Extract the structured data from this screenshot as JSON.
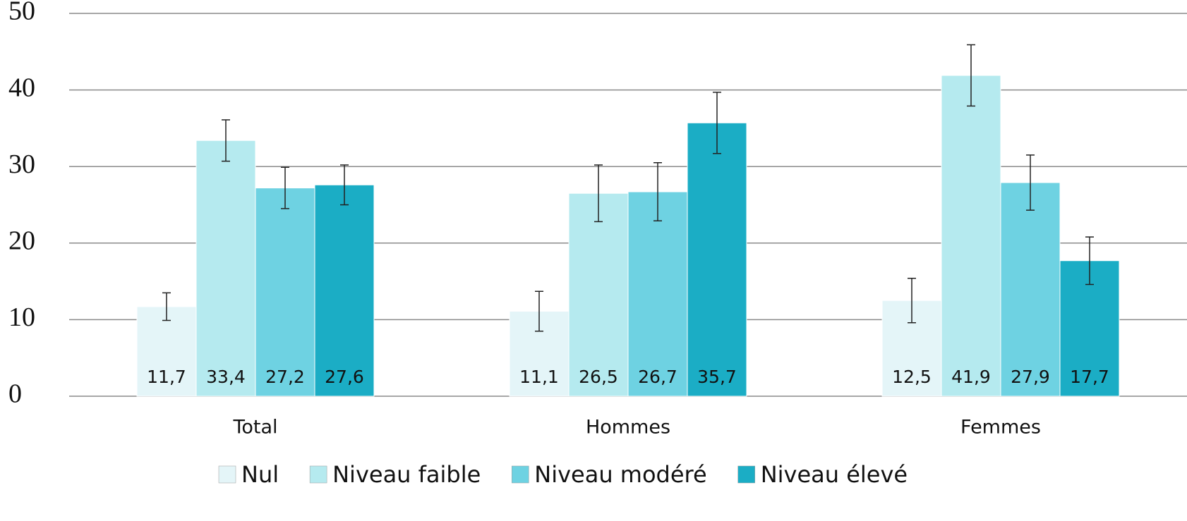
{
  "chart_data": {
    "type": "bar",
    "categories": [
      "Total",
      "Hommes",
      "Femmes"
    ],
    "series": [
      {
        "name": "Nul",
        "color": "#e4f5f8",
        "values": [
          11.7,
          11.1,
          12.5
        ],
        "value_labels": [
          "11,7",
          "11,1",
          "12,5"
        ],
        "errors": [
          1.8,
          2.6,
          2.9
        ]
      },
      {
        "name": "Niveau faible",
        "color": "#b5eaef",
        "values": [
          33.4,
          26.5,
          41.9
        ],
        "value_labels": [
          "33,4",
          "26,5",
          "41,9"
        ],
        "errors": [
          2.7,
          3.7,
          4.0
        ]
      },
      {
        "name": "Niveau modéré",
        "color": "#6ed2e2",
        "values": [
          27.2,
          26.7,
          27.9
        ],
        "value_labels": [
          "27,2",
          "26,7",
          "27,9"
        ],
        "errors": [
          2.7,
          3.8,
          3.6
        ]
      },
      {
        "name": "Niveau élevé",
        "color": "#1badc5",
        "values": [
          27.6,
          35.7,
          17.7
        ],
        "value_labels": [
          "27,6",
          "35,7",
          "17,7"
        ],
        "errors": [
          2.6,
          4.0,
          3.1
        ]
      }
    ],
    "ylim": [
      0,
      50
    ],
    "yticks": [
      0,
      10,
      20,
      30,
      40,
      50
    ],
    "grid": true,
    "legend": "bottom"
  }
}
